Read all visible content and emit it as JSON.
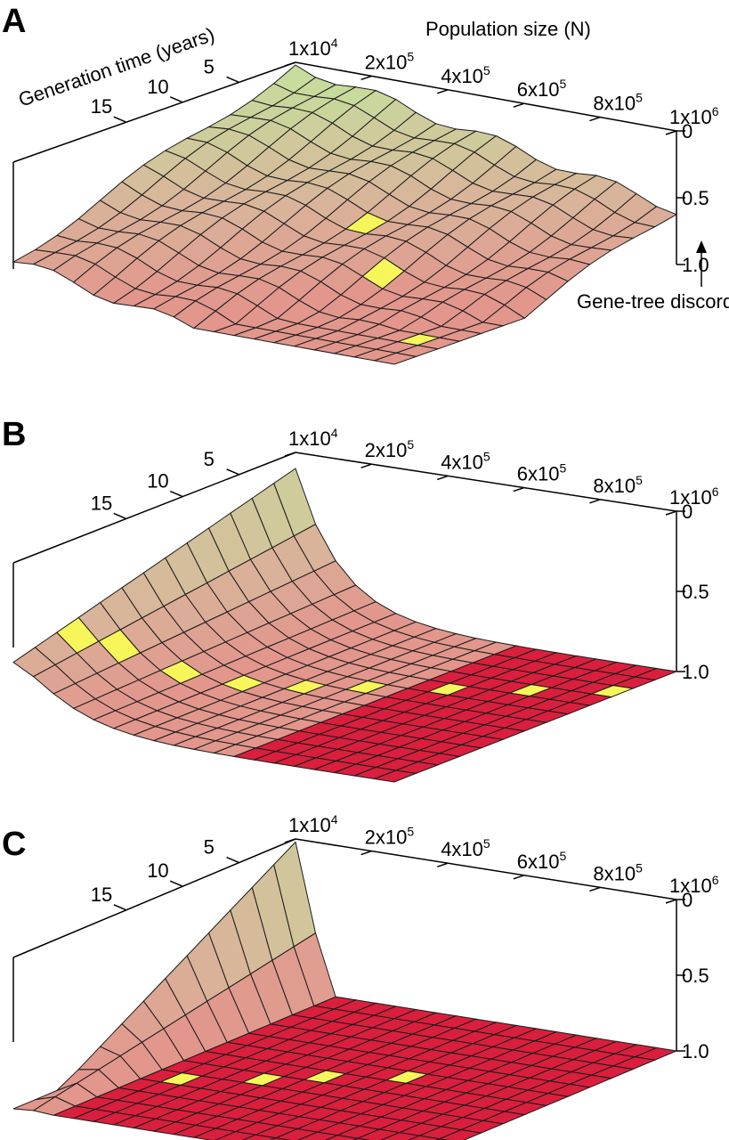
{
  "colors": {
    "low_discord": "#c3e59d",
    "high_discord": "#d91f3d",
    "highlight": "#f6f65a",
    "grid_line": "#1a1a1a",
    "background": "#ffffff"
  },
  "labels": {
    "x_axis_title": "Population size (N)",
    "y_axis_title": "Generation time (years)",
    "z_axis_title": "Gene-tree discord"
  },
  "chart_data": [
    {
      "panel": "A",
      "type": "surface",
      "x_ticks": [
        {
          "value": 10000,
          "base": "1x10",
          "exp": "4"
        },
        {
          "value": 200000,
          "base": "2x10",
          "exp": "5"
        },
        {
          "value": 400000,
          "base": "4x10",
          "exp": "5"
        },
        {
          "value": 600000,
          "base": "6x10",
          "exp": "5"
        },
        {
          "value": 800000,
          "base": "8x10",
          "exp": "5"
        },
        {
          "value": 1000000,
          "base": "1x10",
          "exp": "6"
        }
      ],
      "y_ticks": [
        "5",
        "10",
        "15"
      ],
      "z_ticks": [
        "0",
        "0.5",
        "1.0"
      ],
      "xlim": [
        10000,
        1000000
      ],
      "ylim": [
        1,
        20
      ],
      "zlim": [
        0,
        1
      ],
      "x_title": "Population size (N)",
      "y_title": "Generation time (years)",
      "z_title": "Gene-tree discord",
      "grid": "13 generation-time rows x 19 population-size columns",
      "surface_shape": "discord decreases gradually with generation time, increases with population size",
      "highlight_cells": [
        [
          5,
          9
        ],
        [
          7,
          12
        ],
        [
          10,
          17
        ]
      ]
    },
    {
      "panel": "B",
      "type": "surface",
      "x_ticks": [
        {
          "value": 10000,
          "base": "1x10",
          "exp": "4"
        },
        {
          "value": 200000,
          "base": "2x10",
          "exp": "5"
        },
        {
          "value": 400000,
          "base": "4x10",
          "exp": "5"
        },
        {
          "value": 600000,
          "base": "6x10",
          "exp": "5"
        },
        {
          "value": 800000,
          "base": "8x10",
          "exp": "5"
        },
        {
          "value": 1000000,
          "base": "1x10",
          "exp": "6"
        }
      ],
      "y_ticks": [
        "5",
        "10",
        "15"
      ],
      "z_ticks": [
        "0",
        "0.5",
        "1.0"
      ],
      "xlim": [
        10000,
        1000000
      ],
      "ylim": [
        1,
        20
      ],
      "zlim": [
        0,
        1
      ],
      "surface_shape": "low discord only at smallest population sizes; plateau at 1.0 elsewhere",
      "highlight_cells": [
        [
          10,
          0
        ],
        [
          9,
          1
        ],
        [
          8,
          3
        ],
        [
          7,
          5
        ],
        [
          6,
          7
        ],
        [
          5,
          9
        ],
        [
          4,
          12
        ],
        [
          3,
          15
        ],
        [
          2,
          18
        ]
      ]
    },
    {
      "panel": "C",
      "type": "surface",
      "x_ticks": [
        {
          "value": 10000,
          "base": "1x10",
          "exp": "4"
        },
        {
          "value": 200000,
          "base": "2x10",
          "exp": "5"
        },
        {
          "value": 400000,
          "base": "4x10",
          "exp": "5"
        },
        {
          "value": 600000,
          "base": "6x10",
          "exp": "5"
        },
        {
          "value": 800000,
          "base": "8x10",
          "exp": "5"
        },
        {
          "value": 1000000,
          "base": "1x10",
          "exp": "6"
        }
      ],
      "y_ticks": [
        "5",
        "10",
        "15"
      ],
      "z_ticks": [
        "0",
        "0.5",
        "1.0"
      ],
      "xlim": [
        10000,
        1000000
      ],
      "ylim": [
        1,
        20
      ],
      "zlim": [
        0,
        1
      ],
      "surface_shape": "sharp ridge of low discord only at the first population column; plateau at 1.0 elsewhere",
      "highlight_cells": [
        [
          8,
          3
        ],
        [
          7,
          6
        ],
        [
          6,
          8
        ],
        [
          5,
          11
        ]
      ]
    }
  ]
}
